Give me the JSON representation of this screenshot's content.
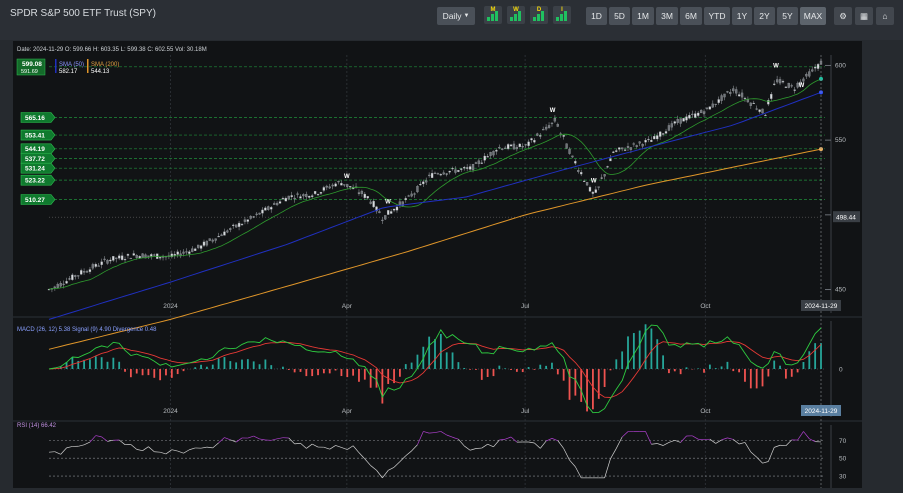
{
  "app": {
    "title": "SPDR S&P 500 ETF Trust (SPY)"
  },
  "toolbar": {
    "interval_label": "Daily",
    "indicator_buttons": [
      "M",
      "W",
      "D",
      "I"
    ],
    "ranges": [
      "1D",
      "5D",
      "1M",
      "3M",
      "6M",
      "YTD",
      "1Y",
      "2Y",
      "5Y",
      "MAX"
    ],
    "active_range": "MAX",
    "icons": [
      "settings-icon",
      "calculator-icon",
      "bank-icon",
      "drawing-icon"
    ]
  },
  "info": {
    "date_label": "Date",
    "date": "2024-11-29",
    "o_label": "O",
    "open": "599.66",
    "h_label": "H",
    "high": "603.35",
    "l_label": "L",
    "low": "599.38",
    "c_label": "C",
    "close": "602.55",
    "vol_label": "Vol",
    "volume": "30.18M"
  },
  "legend": {
    "price": "599.08",
    "price_sub": "591.69",
    "sma50_label": "SMA (50)",
    "sma50_value": "582.17",
    "sma200_label": "SMA (200)",
    "sma200_value": "544.13"
  },
  "colors": {
    "up": "#26a69a",
    "down": "#ef5350",
    "candle": "#bfc3c8",
    "sma20": "#2e9a2e",
    "sma50": "#2030c0",
    "sma200": "#e0962a",
    "support": "#1f8f3a",
    "macd": "#2ecc40",
    "signal": "#e53935",
    "rsi": "#d0d0d0"
  },
  "chart_data": [
    {
      "type": "line",
      "name": "price",
      "x_ticks": [
        "2024",
        "Apr",
        "Jul",
        "Oct"
      ],
      "y_ticks": [
        450,
        500,
        550,
        600
      ],
      "y_tick_labels": [
        "450",
        "550",
        "600"
      ],
      "ylim": [
        445,
        607
      ],
      "cursor_date": "2024-11-29",
      "current_value_tag": "498.44",
      "support_levels": [
        599.08,
        565.16,
        553.41,
        544.19,
        537.72,
        531.24,
        523.22,
        510.27
      ],
      "support_labels": [
        "599.08",
        "565.16",
        "553.41",
        "544.19",
        "537.72",
        "531.24",
        "523.22",
        "510.27"
      ],
      "series": [
        {
          "name": "Price",
          "x": [
            "2023-11-01",
            "2023-11-15",
            "2023-12-01",
            "2023-12-15",
            "2024-01-02",
            "2024-01-16",
            "2024-02-01",
            "2024-02-15",
            "2024-03-01",
            "2024-03-15",
            "2024-03-28",
            "2024-04-05",
            "2024-04-12",
            "2024-04-19",
            "2024-04-26",
            "2024-05-03",
            "2024-05-15",
            "2024-06-03",
            "2024-06-17",
            "2024-07-01",
            "2024-07-16",
            "2024-07-24",
            "2024-08-05",
            "2024-08-15",
            "2024-09-03",
            "2024-09-16",
            "2024-10-01",
            "2024-10-15",
            "2024-10-31",
            "2024-11-06",
            "2024-11-15",
            "2024-11-29"
          ],
          "values": [
            450,
            460,
            470,
            473,
            472,
            478,
            490,
            500,
            512,
            514,
            522,
            517,
            511,
            498,
            505,
            512,
            528,
            531,
            545,
            546,
            563,
            540,
            512,
            542,
            550,
            562,
            570,
            584,
            568,
            590,
            585,
            602
          ]
        },
        {
          "name": "SMA (50)",
          "x": [
            "2023-11-01",
            "2024-01-02",
            "2024-03-01",
            "2024-04-20",
            "2024-06-01",
            "2024-07-20",
            "2024-09-01",
            "2024-10-15",
            "2024-11-29"
          ],
          "values": [
            430,
            455,
            480,
            505,
            512,
            530,
            545,
            560,
            582
          ]
        },
        {
          "name": "SMA (200)",
          "x": [
            "2023-11-01",
            "2024-01-02",
            "2024-03-01",
            "2024-05-01",
            "2024-07-01",
            "2024-09-01",
            "2024-11-29"
          ],
          "values": [
            410,
            430,
            452,
            475,
            500,
            520,
            544
          ]
        }
      ]
    },
    {
      "type": "bar",
      "name": "MACD",
      "title": "MACD (26, 12)",
      "macd_value": "5.38",
      "signal_label": "Signal (9)",
      "signal_value": "4.90",
      "divergence_label": "Divergence",
      "divergence_value": "0.48",
      "y_ticks": [
        0
      ],
      "x_ticks": [
        "2024",
        "Apr",
        "Jul",
        "Oct"
      ],
      "cursor_date": "2024-11-29"
    },
    {
      "type": "line",
      "name": "RSI",
      "title": "RSI (14)",
      "rsi_value": "66.42",
      "y_ticks": [
        30,
        50,
        70
      ],
      "ylim": [
        20,
        85
      ]
    }
  ]
}
